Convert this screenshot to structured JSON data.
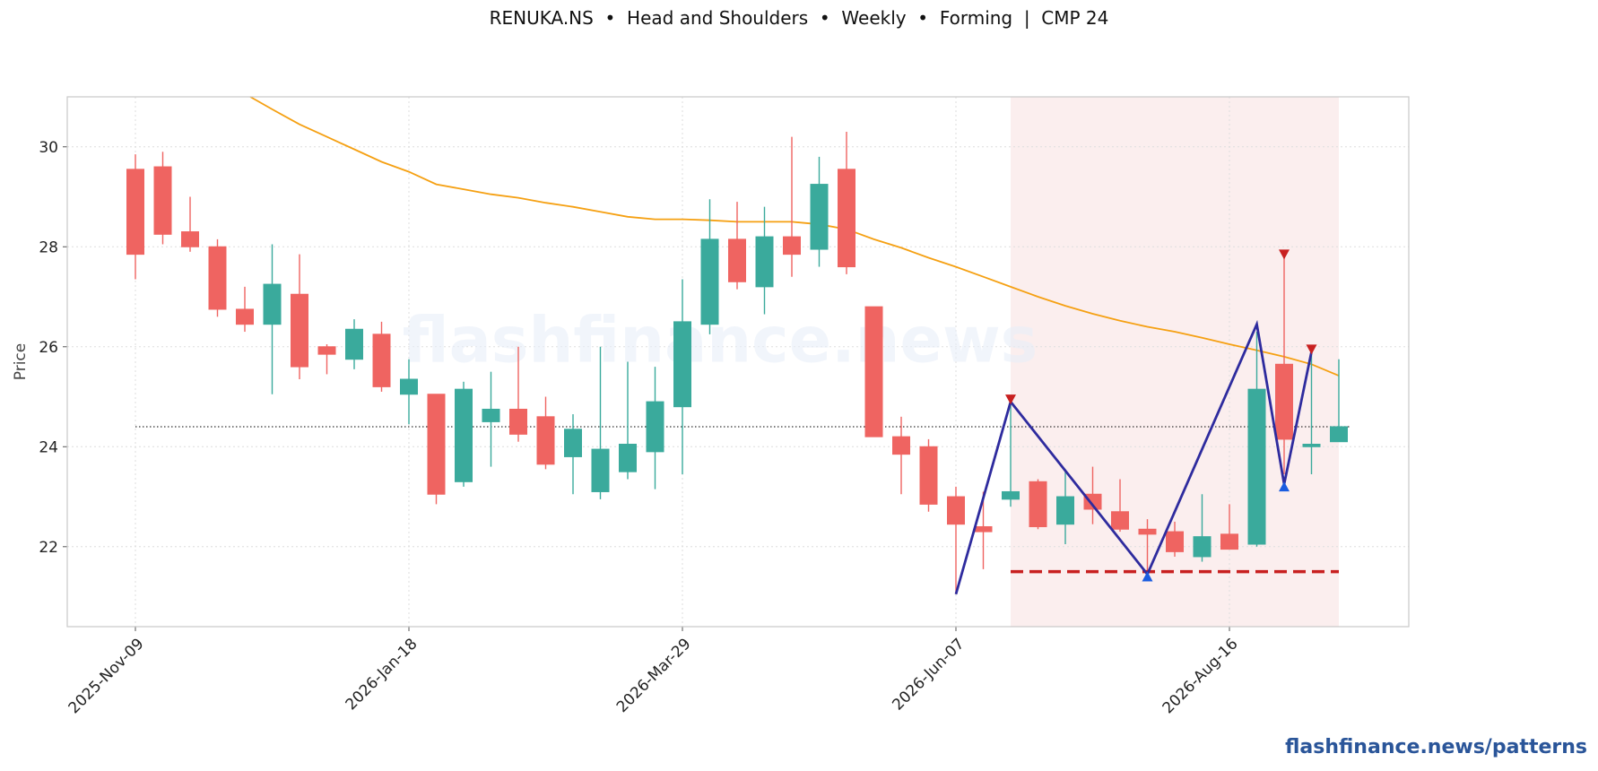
{
  "title": "RENUKA.NS  •  Head and Shoulders  •  Weekly  •  Forming  |  CMP 24",
  "watermark": "flashfinance.news",
  "footer": "flashfinance.news/patterns",
  "colors": {
    "up": "#3aaa9c",
    "down": "#ef6461",
    "ma": "#f5a012",
    "pattern": "#2e2b9e",
    "neckline": "#c82020",
    "shade": "#fbeeee",
    "marker_top": "#c82020",
    "marker_bottom": "#1a5ce0"
  },
  "chart_data": {
    "type": "candlestick",
    "ylabel": "Price",
    "ylim": [
      20.4,
      31.0
    ],
    "yticks": [
      22,
      24,
      26,
      28,
      30
    ],
    "grid": true,
    "xtick_labels": [
      "2025-Nov-09",
      "2026-Jan-18",
      "2026-Mar-29",
      "2026-Jun-07",
      "2026-Aug-16"
    ],
    "candles": [
      {
        "date": "2025-Nov-09",
        "o": 29.55,
        "h": 29.85,
        "l": 27.35,
        "c": 27.85
      },
      {
        "date": "2025-Nov-16",
        "o": 29.6,
        "h": 29.9,
        "l": 28.05,
        "c": 28.25
      },
      {
        "date": "2025-Nov-23",
        "o": 28.3,
        "h": 29.0,
        "l": 27.9,
        "c": 28.0
      },
      {
        "date": "2025-Nov-30",
        "o": 28.0,
        "h": 28.15,
        "l": 26.6,
        "c": 26.75
      },
      {
        "date": "2025-Dec-07",
        "o": 26.75,
        "h": 27.2,
        "l": 26.3,
        "c": 26.45
      },
      {
        "date": "2025-Dec-14",
        "o": 26.45,
        "h": 28.05,
        "l": 25.05,
        "c": 27.25
      },
      {
        "date": "2025-Dec-21",
        "o": 27.05,
        "h": 27.85,
        "l": 25.35,
        "c": 25.6
      },
      {
        "date": "2025-Dec-28",
        "o": 26.0,
        "h": 26.05,
        "l": 25.45,
        "c": 25.85
      },
      {
        "date": "2026-Jan-04",
        "o": 25.75,
        "h": 26.55,
        "l": 25.55,
        "c": 26.35
      },
      {
        "date": "2026-Jan-11",
        "o": 26.25,
        "h": 26.5,
        "l": 25.1,
        "c": 25.2
      },
      {
        "date": "2026-Jan-18",
        "o": 25.05,
        "h": 25.75,
        "l": 24.45,
        "c": 25.35
      },
      {
        "date": "2026-Jan-25",
        "o": 25.05,
        "h": 25.05,
        "l": 22.85,
        "c": 23.05
      },
      {
        "date": "2026-Feb-01",
        "o": 23.3,
        "h": 25.3,
        "l": 23.2,
        "c": 25.15
      },
      {
        "date": "2026-Feb-08",
        "o": 24.5,
        "h": 25.5,
        "l": 23.6,
        "c": 24.75
      },
      {
        "date": "2026-Feb-15",
        "o": 24.75,
        "h": 26.0,
        "l": 24.1,
        "c": 24.25
      },
      {
        "date": "2026-Feb-22",
        "o": 24.6,
        "h": 25.0,
        "l": 23.55,
        "c": 23.65
      },
      {
        "date": "2026-Mar-01",
        "o": 23.8,
        "h": 24.65,
        "l": 23.05,
        "c": 24.35
      },
      {
        "date": "2026-Mar-08",
        "o": 23.1,
        "h": 26.0,
        "l": 22.95,
        "c": 23.95
      },
      {
        "date": "2026-Mar-15",
        "o": 23.5,
        "h": 25.7,
        "l": 23.35,
        "c": 24.05
      },
      {
        "date": "2026-Mar-22",
        "o": 23.9,
        "h": 25.6,
        "l": 23.15,
        "c": 24.9
      },
      {
        "date": "2026-Mar-29",
        "o": 24.8,
        "h": 27.35,
        "l": 23.45,
        "c": 26.5
      },
      {
        "date": "2026-Apr-05",
        "o": 26.45,
        "h": 28.95,
        "l": 26.25,
        "c": 28.15
      },
      {
        "date": "2026-Apr-12",
        "o": 28.15,
        "h": 28.9,
        "l": 27.15,
        "c": 27.3
      },
      {
        "date": "2026-Apr-19",
        "o": 27.2,
        "h": 28.8,
        "l": 26.65,
        "c": 28.2
      },
      {
        "date": "2026-Apr-26",
        "o": 28.2,
        "h": 30.2,
        "l": 27.4,
        "c": 27.85
      },
      {
        "date": "2026-May-03",
        "o": 27.95,
        "h": 29.8,
        "l": 27.6,
        "c": 29.25
      },
      {
        "date": "2026-May-10",
        "o": 29.55,
        "h": 30.3,
        "l": 27.45,
        "c": 27.6
      },
      {
        "date": "2026-May-17",
        "o": 26.8,
        "h": 26.8,
        "l": 24.2,
        "c": 24.2
      },
      {
        "date": "2026-May-24",
        "o": 24.2,
        "h": 24.6,
        "l": 23.05,
        "c": 23.85
      },
      {
        "date": "2026-May-31",
        "o": 24.0,
        "h": 24.15,
        "l": 22.7,
        "c": 22.85
      },
      {
        "date": "2026-Jun-07",
        "o": 23.0,
        "h": 23.2,
        "l": 21.05,
        "c": 22.45
      },
      {
        "date": "2026-Jun-14",
        "o": 22.4,
        "h": 23.1,
        "l": 21.55,
        "c": 22.3
      },
      {
        "date": "2026-Jun-21",
        "o": 22.95,
        "h": 24.9,
        "l": 22.8,
        "c": 23.1
      },
      {
        "date": "2026-Jun-28",
        "o": 23.3,
        "h": 23.35,
        "l": 22.35,
        "c": 22.4
      },
      {
        "date": "2026-Jul-05",
        "o": 22.45,
        "h": 23.55,
        "l": 22.05,
        "c": 23.0
      },
      {
        "date": "2026-Jul-12",
        "o": 23.05,
        "h": 23.6,
        "l": 22.45,
        "c": 22.75
      },
      {
        "date": "2026-Jul-19",
        "o": 22.7,
        "h": 23.35,
        "l": 22.3,
        "c": 22.35
      },
      {
        "date": "2026-Jul-26",
        "o": 22.35,
        "h": 22.55,
        "l": 21.5,
        "c": 22.25
      },
      {
        "date": "2026-Aug-02",
        "o": 22.3,
        "h": 22.5,
        "l": 21.8,
        "c": 21.9
      },
      {
        "date": "2026-Aug-09",
        "o": 21.8,
        "h": 23.05,
        "l": 21.7,
        "c": 22.2
      },
      {
        "date": "2026-Aug-16",
        "o": 22.25,
        "h": 22.85,
        "l": 21.95,
        "c": 21.95
      },
      {
        "date": "2026-Aug-23",
        "o": 22.05,
        "h": 26.3,
        "l": 22.0,
        "c": 25.15
      },
      {
        "date": "2026-Aug-30",
        "o": 25.65,
        "h": 27.8,
        "l": 23.45,
        "c": 24.15
      },
      {
        "date": "2026-Sep-06",
        "o": 24.0,
        "h": 25.9,
        "l": 23.45,
        "c": 24.05
      },
      {
        "date": "2026-Sep-13",
        "o": 24.1,
        "h": 25.75,
        "l": 24.1,
        "c": 24.4
      }
    ],
    "moving_average": [
      {
        "i": 4.2,
        "v": 31.0
      },
      {
        "i": 5,
        "v": 30.75
      },
      {
        "i": 6,
        "v": 30.45
      },
      {
        "i": 7,
        "v": 30.2
      },
      {
        "i": 8,
        "v": 29.95
      },
      {
        "i": 9,
        "v": 29.7
      },
      {
        "i": 10,
        "v": 29.5
      },
      {
        "i": 11,
        "v": 29.25
      },
      {
        "i": 12,
        "v": 29.15
      },
      {
        "i": 13,
        "v": 29.05
      },
      {
        "i": 14,
        "v": 28.98
      },
      {
        "i": 15,
        "v": 28.88
      },
      {
        "i": 16,
        "v": 28.8
      },
      {
        "i": 17,
        "v": 28.7
      },
      {
        "i": 18,
        "v": 28.6
      },
      {
        "i": 19,
        "v": 28.55
      },
      {
        "i": 20,
        "v": 28.55
      },
      {
        "i": 21,
        "v": 28.53
      },
      {
        "i": 22,
        "v": 28.5
      },
      {
        "i": 23,
        "v": 28.5
      },
      {
        "i": 24,
        "v": 28.5
      },
      {
        "i": 25,
        "v": 28.45
      },
      {
        "i": 26,
        "v": 28.35
      },
      {
        "i": 27,
        "v": 28.15
      },
      {
        "i": 28,
        "v": 27.98
      },
      {
        "i": 29,
        "v": 27.78
      },
      {
        "i": 30,
        "v": 27.6
      },
      {
        "i": 31,
        "v": 27.4
      },
      {
        "i": 32,
        "v": 27.2
      },
      {
        "i": 33,
        "v": 27.0
      },
      {
        "i": 34,
        "v": 26.82
      },
      {
        "i": 35,
        "v": 26.66
      },
      {
        "i": 36,
        "v": 26.52
      },
      {
        "i": 37,
        "v": 26.4
      },
      {
        "i": 38,
        "v": 26.3
      },
      {
        "i": 39,
        "v": 26.18
      },
      {
        "i": 40,
        "v": 26.05
      },
      {
        "i": 41,
        "v": 25.93
      },
      {
        "i": 42,
        "v": 25.8
      },
      {
        "i": 43,
        "v": 25.65
      },
      {
        "i": 44,
        "v": 25.42
      }
    ],
    "cmp_line": 24.4,
    "pattern_region": {
      "from_index": 32,
      "to_index": 44
    },
    "pattern_line": [
      {
        "i": 30,
        "v": 21.05
      },
      {
        "i": 32,
        "v": 24.9
      },
      {
        "i": 37,
        "v": 21.45
      },
      {
        "i": 41,
        "v": 26.45
      },
      {
        "i": 42,
        "v": 23.25
      },
      {
        "i": 43,
        "v": 25.9
      }
    ],
    "neckline": {
      "from_index": 32,
      "to_index": 44,
      "value": 21.5
    },
    "markers": [
      {
        "i": 32,
        "v": 24.9,
        "kind": "top"
      },
      {
        "i": 37,
        "v": 21.45,
        "kind": "bottom"
      },
      {
        "i": 42,
        "v": 27.8,
        "kind": "top"
      },
      {
        "i": 42,
        "v": 23.25,
        "kind": "bottom"
      },
      {
        "i": 43,
        "v": 25.9,
        "kind": "top"
      }
    ]
  }
}
